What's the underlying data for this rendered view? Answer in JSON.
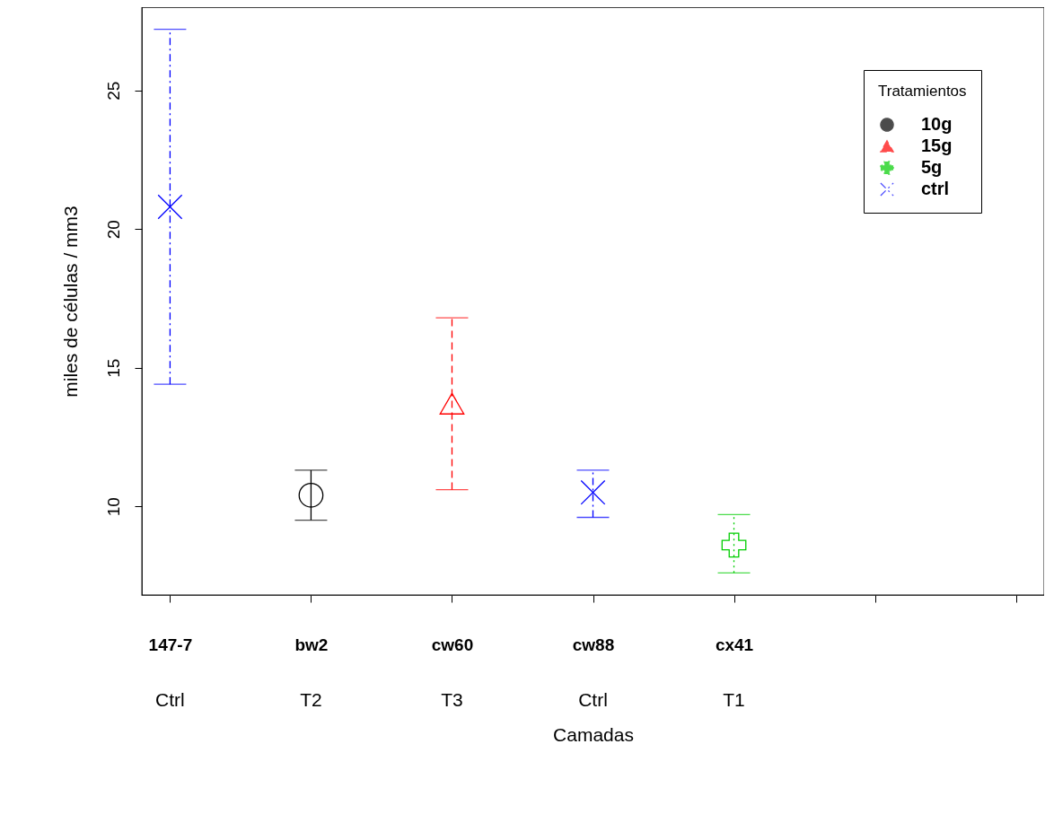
{
  "chart_data": {
    "type": "scatter",
    "xlabel": "Camadas",
    "ylabel": "miles de células / mm3",
    "legend_title": "Tratamientos",
    "legend": "top right",
    "grid": false,
    "categories": [
      "147-7",
      "bw2",
      "cw60",
      "cw88",
      "cx41",
      null,
      null
    ],
    "ylim": [
      6.8,
      28.0
    ],
    "yticks": [
      10,
      15,
      20,
      25
    ],
    "series": [
      {
        "name": "10g",
        "color": "#000000",
        "marker": "circle",
        "line_style": "solid",
        "values": [
          null,
          10.4,
          null,
          null,
          null,
          null,
          null
        ],
        "errors": [
          null,
          [
            9.5,
            11.3
          ],
          null,
          null,
          null,
          null,
          null
        ]
      },
      {
        "name": "15g",
        "color": "#ff0000",
        "marker": "triangle",
        "line_style": "dashed",
        "values": [
          null,
          null,
          13.7,
          null,
          null,
          null,
          null
        ],
        "errors": [
          null,
          null,
          [
            10.6,
            16.8
          ],
          null,
          null,
          null,
          null
        ]
      },
      {
        "name": "5g",
        "color": "#00cd00",
        "marker": "plus",
        "line_style": "dotted",
        "values": [
          null,
          null,
          null,
          null,
          8.6,
          null,
          null
        ],
        "errors": [
          null,
          null,
          null,
          null,
          [
            7.6,
            9.7
          ],
          null,
          null
        ]
      },
      {
        "name": "ctrl",
        "color": "#0000ff",
        "marker": "cross",
        "line_style": "dashdot",
        "values": [
          20.8,
          null,
          null,
          10.5,
          null,
          null,
          null
        ],
        "errors": [
          [
            14.4,
            27.2
          ],
          null,
          null,
          [
            9.6,
            11.3
          ],
          null,
          null,
          null
        ]
      }
    ],
    "annotations": [
      "Ctrl",
      "T2",
      "T3",
      "Ctrl",
      "T1"
    ]
  }
}
